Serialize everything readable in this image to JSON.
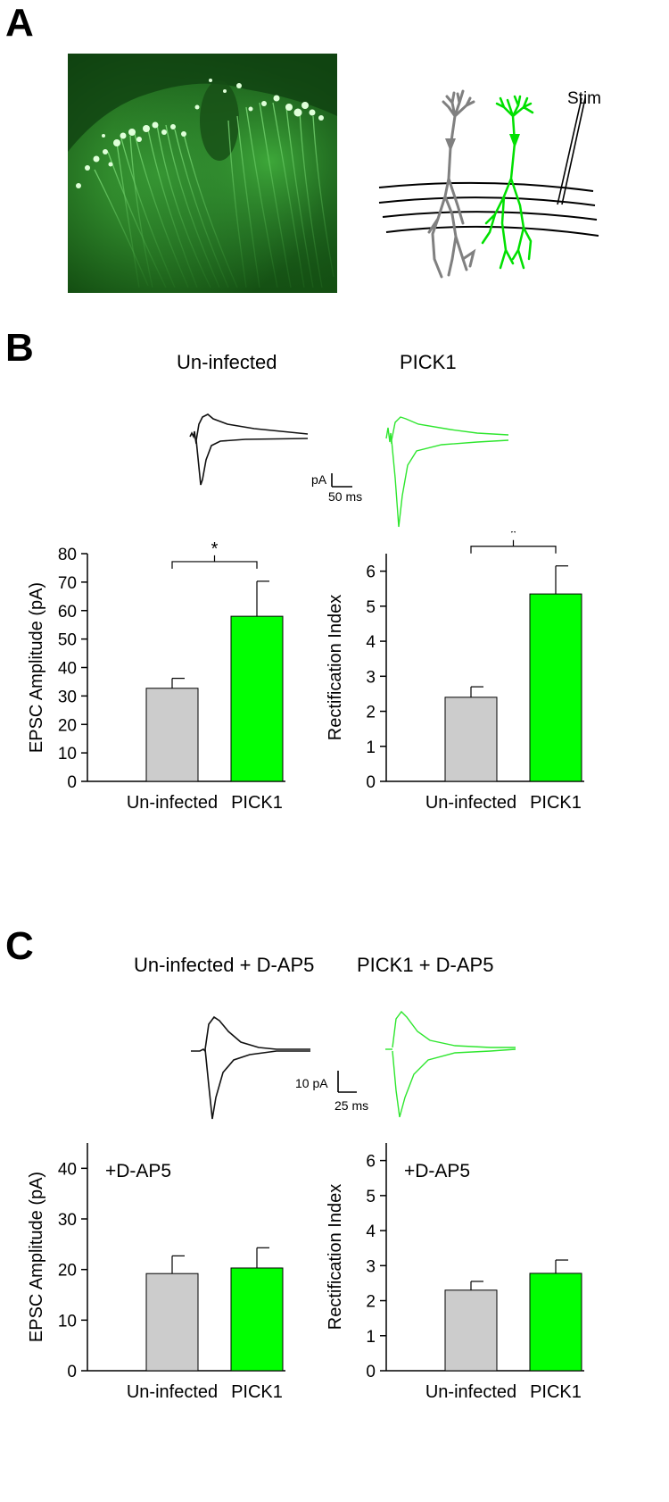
{
  "panels": {
    "a": {
      "letter": "A",
      "diagram": {
        "stim_label": "Stim",
        "neuron_colors": [
          "#808080",
          "#00e000"
        ]
      }
    },
    "b": {
      "letter": "B",
      "conditions": [
        "Un-infected",
        "PICK1"
      ],
      "scale_bar": {
        "y_label": "pA",
        "x_label": "50 ms"
      }
    },
    "c": {
      "letter": "C",
      "conditions": [
        "Un-infected + D-AP5",
        "PICK1 + D-AP5"
      ],
      "scale_bar": {
        "y_label": "10 pA",
        "x_label": "25 ms"
      }
    }
  },
  "colors": {
    "uninfected": "#cccccc",
    "pick1": "#00ff00",
    "trace_pick1": "#2ee62e",
    "trace_uninfected": "#111111"
  },
  "chart_data": [
    {
      "id": "b-left",
      "type": "bar",
      "categories": [
        "Un-infected",
        "PICK1"
      ],
      "values": [
        32.7,
        58.0
      ],
      "errors": [
        3.5,
        12.3
      ],
      "ylabel": "EPSC Amplitude (pA)",
      "ylim": [
        0,
        80
      ],
      "yticks": [
        0,
        10,
        20,
        30,
        40,
        50,
        60,
        70,
        80
      ],
      "significance": "*",
      "annotation": ""
    },
    {
      "id": "b-right",
      "type": "bar",
      "categories": [
        "Un-infected",
        "PICK1"
      ],
      "values": [
        2.4,
        5.35
      ],
      "errors": [
        0.3,
        0.8
      ],
      "ylabel": "Rectification Index",
      "ylim": [
        0,
        6.5
      ],
      "yticks": [
        0,
        1,
        2,
        3,
        4,
        5,
        6
      ],
      "significance": "*",
      "annotation": ""
    },
    {
      "id": "c-left",
      "type": "bar",
      "categories": [
        "Un-infected",
        "PICK1"
      ],
      "values": [
        19.2,
        20.3
      ],
      "errors": [
        3.5,
        4.0
      ],
      "ylabel": "EPSC Amplitude (pA)",
      "ylim": [
        0,
        45
      ],
      "yticks": [
        0,
        10,
        20,
        30,
        40
      ],
      "significance": "",
      "annotation": "+D-AP5"
    },
    {
      "id": "c-right",
      "type": "bar",
      "categories": [
        "Un-infected",
        "PICK1"
      ],
      "values": [
        2.3,
        2.78
      ],
      "errors": [
        0.25,
        0.38
      ],
      "ylabel": "Rectification Index",
      "ylim": [
        0,
        6.5
      ],
      "yticks": [
        0,
        1,
        2,
        3,
        4,
        5,
        6
      ],
      "significance": "",
      "annotation": "+D-AP5"
    }
  ]
}
